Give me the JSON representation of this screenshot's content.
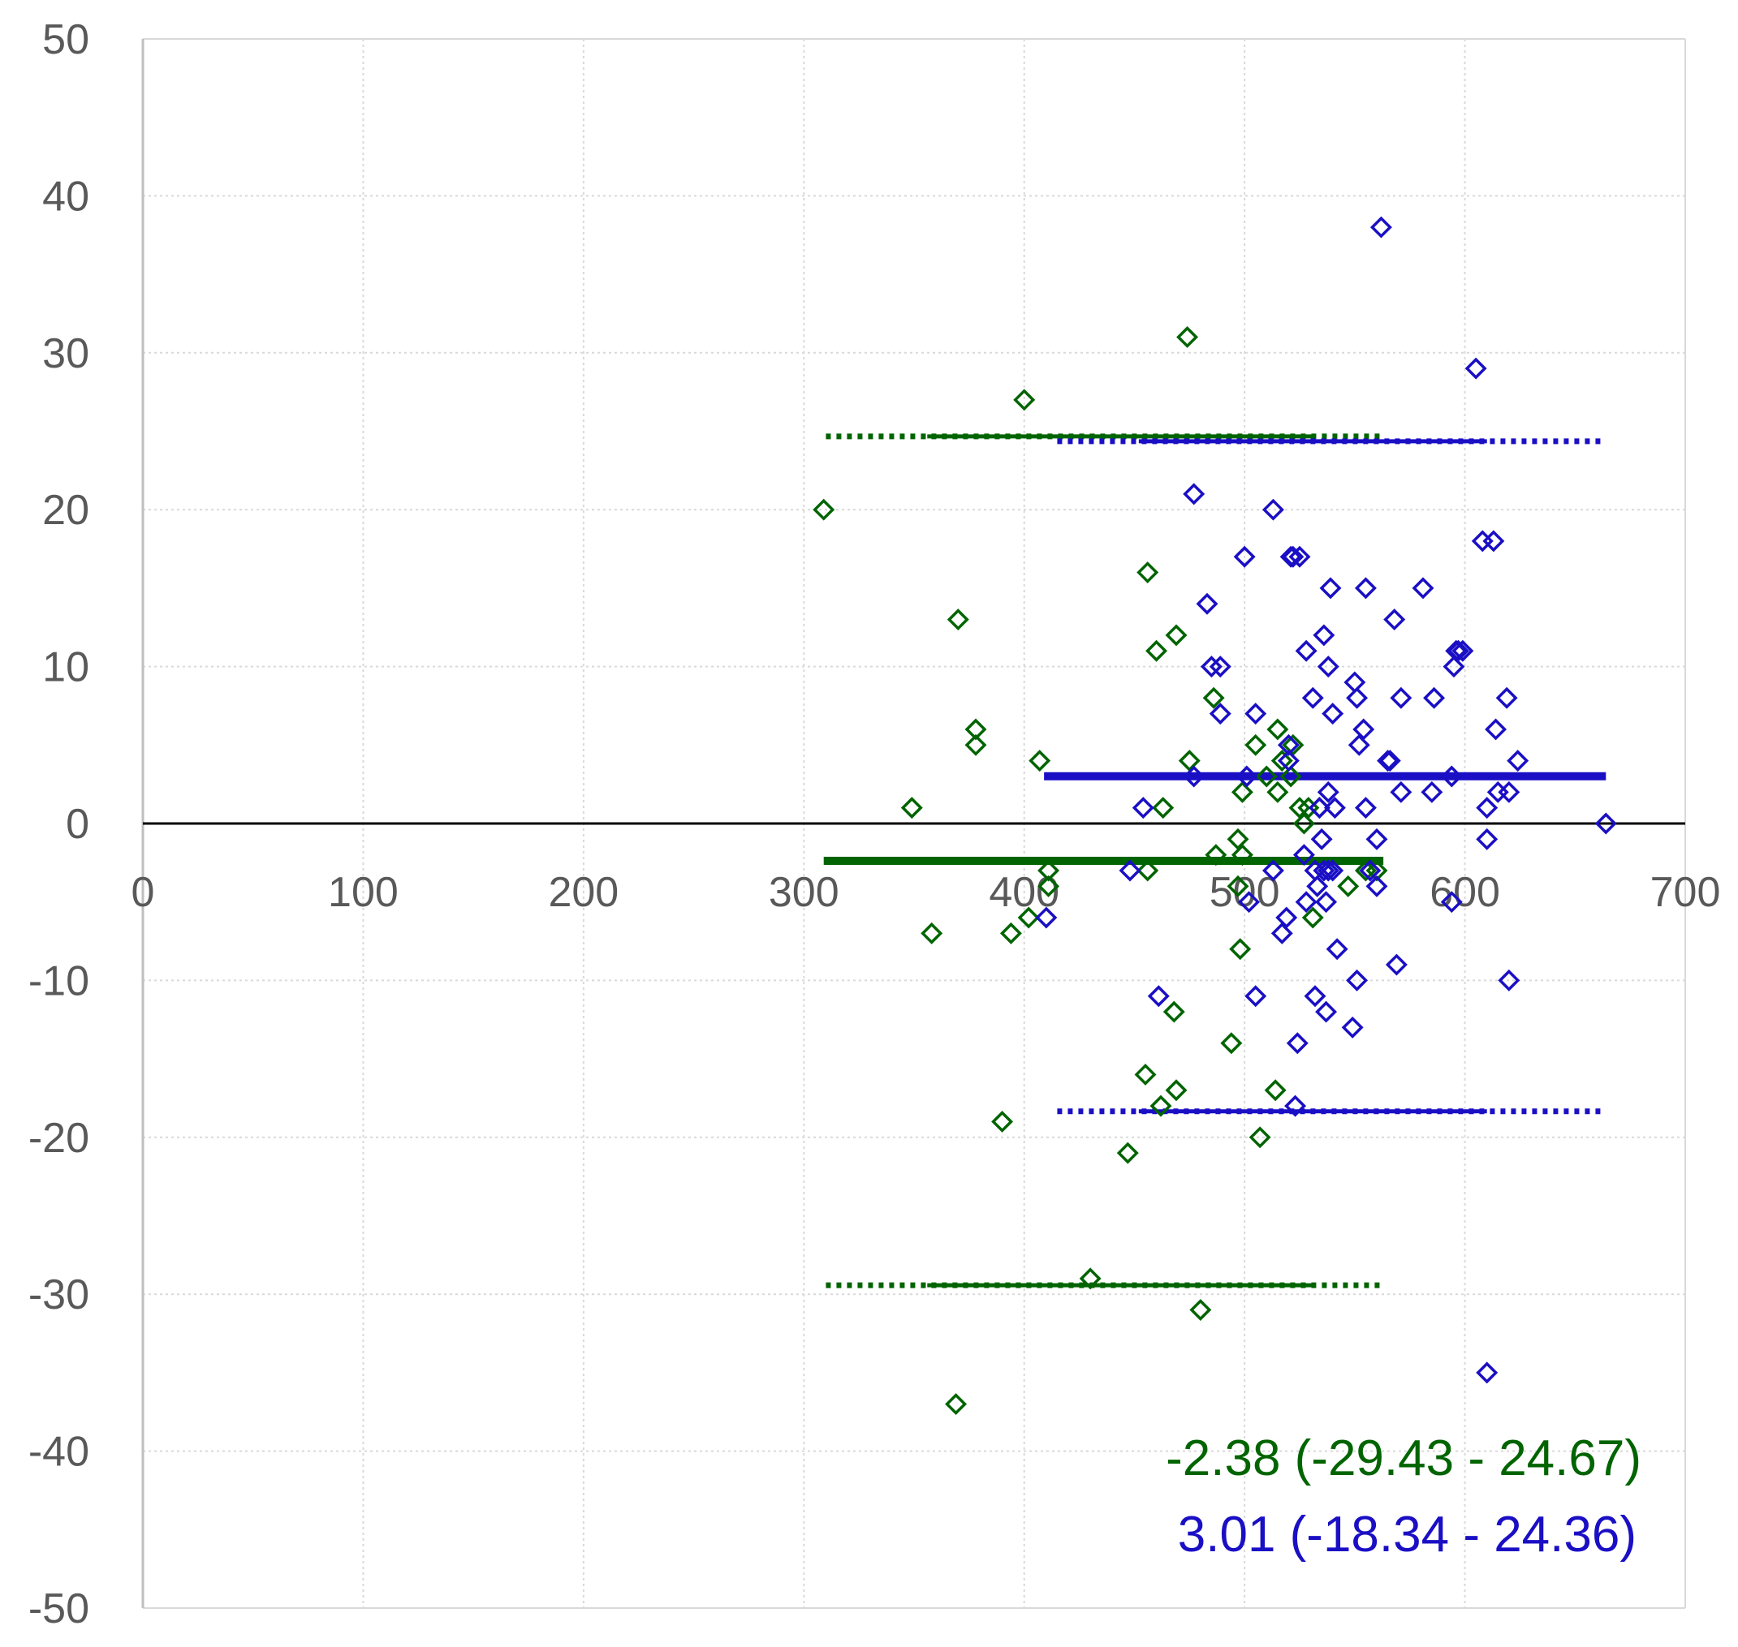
{
  "chart_data": {
    "type": "scatter",
    "title": "",
    "xlabel": "",
    "ylabel": "",
    "xlim": [
      0,
      700
    ],
    "ylim": [
      -50,
      50
    ],
    "grid": true,
    "x_ticks": [
      "0",
      "100",
      "200",
      "300",
      "400",
      "500",
      "600",
      "700"
    ],
    "y_ticks": [
      "50",
      "40",
      "30",
      "20",
      "10",
      "0",
      "-10",
      "-20",
      "-30",
      "-40",
      "-50"
    ],
    "colors": {
      "green": "#006400",
      "blue": "#1a0fc4",
      "grid": "#d9d9d9",
      "axis": "#000000"
    },
    "series": [
      {
        "name": "green",
        "color": "#006400",
        "marker": "diamond",
        "mean": -2.38,
        "loa_lower": -29.43,
        "loa_upper": 24.67,
        "line_range": [
          309,
          563
        ],
        "loa_dotted_range": [
          310,
          563
        ],
        "loa_solid_range": [
          356,
          531
        ],
        "points": [
          [
            309,
            20
          ],
          [
            349,
            1
          ],
          [
            358,
            -7
          ],
          [
            369,
            -37
          ],
          [
            370,
            13
          ],
          [
            378,
            6
          ],
          [
            378,
            5
          ],
          [
            390,
            -19
          ],
          [
            394,
            -7
          ],
          [
            400,
            27
          ],
          [
            402,
            -6
          ],
          [
            407,
            4
          ],
          [
            411,
            -3
          ],
          [
            411,
            -4
          ],
          [
            430,
            -29
          ],
          [
            447,
            -21
          ],
          [
            455,
            -16
          ],
          [
            456,
            16
          ],
          [
            456,
            -3
          ],
          [
            460,
            11
          ],
          [
            462,
            -18
          ],
          [
            463,
            1
          ],
          [
            468,
            -12
          ],
          [
            469,
            12
          ],
          [
            469,
            -17
          ],
          [
            474,
            31
          ],
          [
            475,
            4
          ],
          [
            480,
            -31
          ],
          [
            486,
            8
          ],
          [
            487,
            -2
          ],
          [
            494,
            -14
          ],
          [
            497,
            -1
          ],
          [
            497,
            -4
          ],
          [
            498,
            -8
          ],
          [
            499,
            -2
          ],
          [
            499,
            2
          ],
          [
            505,
            5
          ],
          [
            507,
            -20
          ],
          [
            510,
            3
          ],
          [
            514,
            -17
          ],
          [
            515,
            6
          ],
          [
            515,
            2
          ],
          [
            517,
            4
          ],
          [
            521,
            3
          ],
          [
            522,
            5
          ],
          [
            525,
            1
          ],
          [
            527,
            0
          ],
          [
            529,
            1
          ],
          [
            531,
            -6
          ],
          [
            547,
            -4
          ],
          [
            555,
            -3
          ],
          [
            560,
            -3
          ]
        ]
      },
      {
        "name": "blue",
        "color": "#1a0fc4",
        "marker": "diamond",
        "mean": 3.01,
        "loa_lower": -18.34,
        "loa_upper": 24.36,
        "line_range": [
          409,
          664
        ],
        "loa_dotted_range": [
          415,
          664
        ],
        "loa_solid_range": [
          452,
          610
        ],
        "points": [
          [
            410,
            -6
          ],
          [
            448,
            -3
          ],
          [
            454,
            1
          ],
          [
            461,
            -11
          ],
          [
            477,
            3
          ],
          [
            477,
            21
          ],
          [
            483,
            14
          ],
          [
            485,
            10
          ],
          [
            489,
            10
          ],
          [
            489,
            7
          ],
          [
            500,
            17
          ],
          [
            501,
            3
          ],
          [
            502,
            -5
          ],
          [
            505,
            -11
          ],
          [
            505,
            7
          ],
          [
            513,
            -3
          ],
          [
            513,
            20
          ],
          [
            517,
            -7
          ],
          [
            519,
            -6
          ],
          [
            520,
            4
          ],
          [
            520,
            5
          ],
          [
            521,
            17
          ],
          [
            522,
            17
          ],
          [
            523,
            -18
          ],
          [
            524,
            -14
          ],
          [
            525,
            17
          ],
          [
            527,
            -2
          ],
          [
            528,
            -5
          ],
          [
            528,
            11
          ],
          [
            531,
            8
          ],
          [
            532,
            -11
          ],
          [
            532,
            -3
          ],
          [
            533,
            -4
          ],
          [
            534,
            1
          ],
          [
            534,
            1
          ],
          [
            535,
            -1
          ],
          [
            536,
            12
          ],
          [
            536,
            -3
          ],
          [
            537,
            -12
          ],
          [
            537,
            -5
          ],
          [
            538,
            -3
          ],
          [
            538,
            10
          ],
          [
            538,
            2
          ],
          [
            539,
            15
          ],
          [
            540,
            7
          ],
          [
            540,
            -3
          ],
          [
            541,
            1
          ],
          [
            542,
            -8
          ],
          [
            550,
            9
          ],
          [
            551,
            8
          ],
          [
            551,
            -10
          ],
          [
            549,
            -13
          ],
          [
            552,
            5
          ],
          [
            554,
            6
          ],
          [
            555,
            1
          ],
          [
            555,
            15
          ],
          [
            557,
            -3
          ],
          [
            560,
            -1
          ],
          [
            560,
            -4
          ],
          [
            562,
            38
          ],
          [
            565,
            4
          ],
          [
            566,
            4
          ],
          [
            568,
            13
          ],
          [
            569,
            -9
          ],
          [
            571,
            2
          ],
          [
            571,
            8
          ],
          [
            581,
            15
          ],
          [
            585,
            2
          ],
          [
            586,
            8
          ],
          [
            594,
            -5
          ],
          [
            594,
            3
          ],
          [
            595,
            10
          ],
          [
            596,
            11
          ],
          [
            597,
            11
          ],
          [
            599,
            11
          ],
          [
            605,
            29
          ],
          [
            608,
            18
          ],
          [
            610,
            -1
          ],
          [
            610,
            1
          ],
          [
            613,
            18
          ],
          [
            614,
            6
          ],
          [
            615,
            2
          ],
          [
            619,
            8
          ],
          [
            620,
            2
          ],
          [
            620,
            -10
          ],
          [
            624,
            4
          ],
          [
            664,
            0
          ],
          [
            610,
            -35
          ]
        ]
      }
    ],
    "annotations": [
      "-2.38 (-29.43 - 24.67)",
      "3.01 (-18.34 - 24.36)"
    ]
  }
}
